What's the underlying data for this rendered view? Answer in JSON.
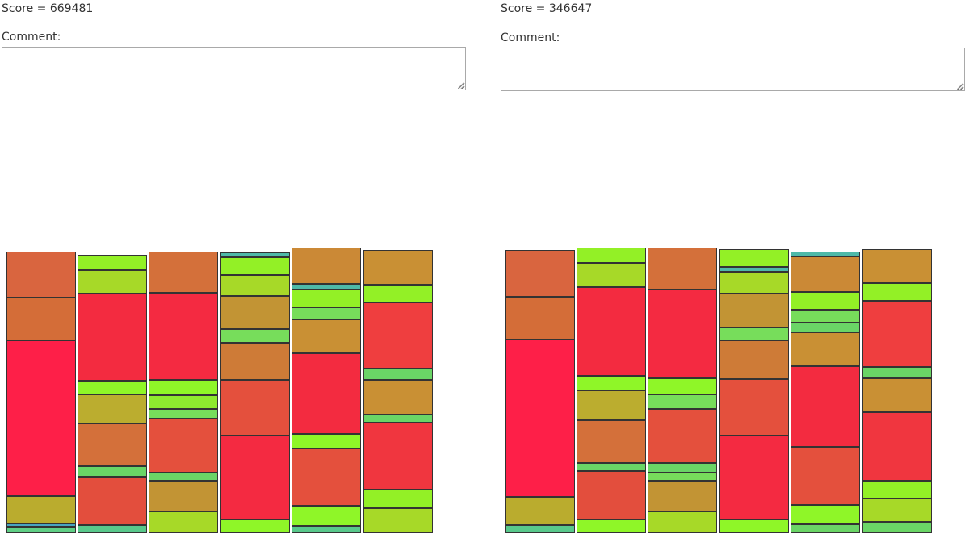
{
  "panels": [
    {
      "score_text": "Score = 669481",
      "comment_label": "Comment:",
      "comment_value": "",
      "columns": [
        {
          "segments": [
            {
              "color": "#d9653f",
              "h": 57
            },
            {
              "color": "#d46d38",
              "h": 53
            },
            {
              "color": "#fe1f48",
              "h": 193
            },
            {
              "color": "#baac2e",
              "h": 34
            },
            {
              "color": "#48a4c0",
              "h": 4
            },
            {
              "color": "#5fcf85",
              "h": 8
            }
          ]
        },
        {
          "segments": [
            {
              "color": "#93f026",
              "h": 19
            },
            {
              "color": "#a7d928",
              "h": 29
            },
            {
              "color": "#f32b40",
              "h": 108
            },
            {
              "color": "#8ff628",
              "h": 17
            },
            {
              "color": "#bbad2f",
              "h": 36
            },
            {
              "color": "#d4703a",
              "h": 53
            },
            {
              "color": "#6ad566",
              "h": 13
            },
            {
              "color": "#e34e3d",
              "h": 60
            },
            {
              "color": "#58c88b",
              "h": 10
            }
          ]
        },
        {
          "segments": [
            {
              "color": "#d4703a",
              "h": 51
            },
            {
              "color": "#f42a41",
              "h": 108
            },
            {
              "color": "#8ff628",
              "h": 19
            },
            {
              "color": "#8ee92f",
              "h": 17
            },
            {
              "color": "#77dd5b",
              "h": 12
            },
            {
              "color": "#e4503d",
              "h": 67
            },
            {
              "color": "#6ad566",
              "h": 10
            },
            {
              "color": "#c29434",
              "h": 38
            },
            {
              "color": "#a7d928",
              "h": 27
            }
          ]
        },
        {
          "segments": [
            {
              "color": "#4eb9a8",
              "h": 6
            },
            {
              "color": "#93f026",
              "h": 22
            },
            {
              "color": "#a7d928",
              "h": 26
            },
            {
              "color": "#c29434",
              "h": 41
            },
            {
              "color": "#77dd5b",
              "h": 17
            },
            {
              "color": "#ce7b37",
              "h": 46
            },
            {
              "color": "#e4503d",
              "h": 69
            },
            {
              "color": "#f42a41",
              "h": 104
            },
            {
              "color": "#8ff628",
              "h": 17
            }
          ]
        },
        {
          "segments": [
            {
              "color": "#cb8936",
              "h": 45
            },
            {
              "color": "#4eb9a8",
              "h": 7
            },
            {
              "color": "#93f026",
              "h": 22
            },
            {
              "color": "#77dd5b",
              "h": 15
            },
            {
              "color": "#c99034",
              "h": 42
            },
            {
              "color": "#f32b40",
              "h": 100
            },
            {
              "color": "#8ff628",
              "h": 18
            },
            {
              "color": "#e4503d",
              "h": 71
            },
            {
              "color": "#8ff628",
              "h": 25
            },
            {
              "color": "#58c88b",
              "h": 9
            }
          ]
        },
        {
          "segments": [
            {
              "color": "#c99034",
              "h": 43
            },
            {
              "color": "#93f026",
              "h": 22
            },
            {
              "color": "#ef3e3f",
              "h": 82
            },
            {
              "color": "#6ad566",
              "h": 14
            },
            {
              "color": "#c99034",
              "h": 43
            },
            {
              "color": "#6ad566",
              "h": 10
            },
            {
              "color": "#f0363f",
              "h": 83
            },
            {
              "color": "#93f026",
              "h": 23
            },
            {
              "color": "#a7d928",
              "h": 31
            }
          ]
        }
      ]
    },
    {
      "score_text": "Score = 346647",
      "comment_label": "Comment:",
      "comment_value": "",
      "columns": [
        {
          "segments": [
            {
              "color": "#d9653f",
              "h": 58
            },
            {
              "color": "#d46d38",
              "h": 53
            },
            {
              "color": "#fe1f48",
              "h": 195
            },
            {
              "color": "#baac2e",
              "h": 35
            },
            {
              "color": "#58c88b",
              "h": 10
            }
          ]
        },
        {
          "segments": [
            {
              "color": "#93f026",
              "h": 19
            },
            {
              "color": "#a7d928",
              "h": 30
            },
            {
              "color": "#f32b40",
              "h": 110
            },
            {
              "color": "#8ff628",
              "h": 18
            },
            {
              "color": "#bbad2f",
              "h": 37
            },
            {
              "color": "#d4703a",
              "h": 53
            },
            {
              "color": "#6ad566",
              "h": 10
            },
            {
              "color": "#e34e3d",
              "h": 60
            },
            {
              "color": "#8ff628",
              "h": 17
            }
          ]
        },
        {
          "segments": [
            {
              "color": "#d4703a",
              "h": 52
            },
            {
              "color": "#f42a41",
              "h": 110
            },
            {
              "color": "#8ff628",
              "h": 20
            },
            {
              "color": "#77dd5b",
              "h": 18
            },
            {
              "color": "#e4503d",
              "h": 67
            },
            {
              "color": "#6ad566",
              "h": 12
            },
            {
              "color": "#77dd5b",
              "h": 10
            },
            {
              "color": "#c29434",
              "h": 38
            },
            {
              "color": "#a7d928",
              "h": 27
            }
          ]
        },
        {
          "segments": [
            {
              "color": "#93f026",
              "h": 22
            },
            {
              "color": "#4eb9a8",
              "h": 6
            },
            {
              "color": "#a7d928",
              "h": 27
            },
            {
              "color": "#c29434",
              "h": 42
            },
            {
              "color": "#77dd5b",
              "h": 16
            },
            {
              "color": "#ce7b37",
              "h": 48
            },
            {
              "color": "#e4503d",
              "h": 70
            },
            {
              "color": "#f42a41",
              "h": 104
            },
            {
              "color": "#8ff628",
              "h": 17
            }
          ]
        },
        {
          "segments": [
            {
              "color": "#4eb9a8",
              "h": 6
            },
            {
              "color": "#cb8936",
              "h": 44
            },
            {
              "color": "#93f026",
              "h": 22
            },
            {
              "color": "#77dd5b",
              "h": 16
            },
            {
              "color": "#6ad566",
              "h": 12
            },
            {
              "color": "#c99034",
              "h": 42
            },
            {
              "color": "#f32b40",
              "h": 100
            },
            {
              "color": "#e4503d",
              "h": 72
            },
            {
              "color": "#8ff628",
              "h": 24
            },
            {
              "color": "#6ad566",
              "h": 11
            }
          ]
        },
        {
          "segments": [
            {
              "color": "#c99034",
              "h": 42
            },
            {
              "color": "#93f026",
              "h": 22
            },
            {
              "color": "#ef3e3f",
              "h": 82
            },
            {
              "color": "#6ad566",
              "h": 14
            },
            {
              "color": "#c99034",
              "h": 42
            },
            {
              "color": "#f0363f",
              "h": 85
            },
            {
              "color": "#93f026",
              "h": 22
            },
            {
              "color": "#a7d928",
              "h": 29
            },
            {
              "color": "#6ad566",
              "h": 14
            }
          ]
        }
      ]
    }
  ]
}
